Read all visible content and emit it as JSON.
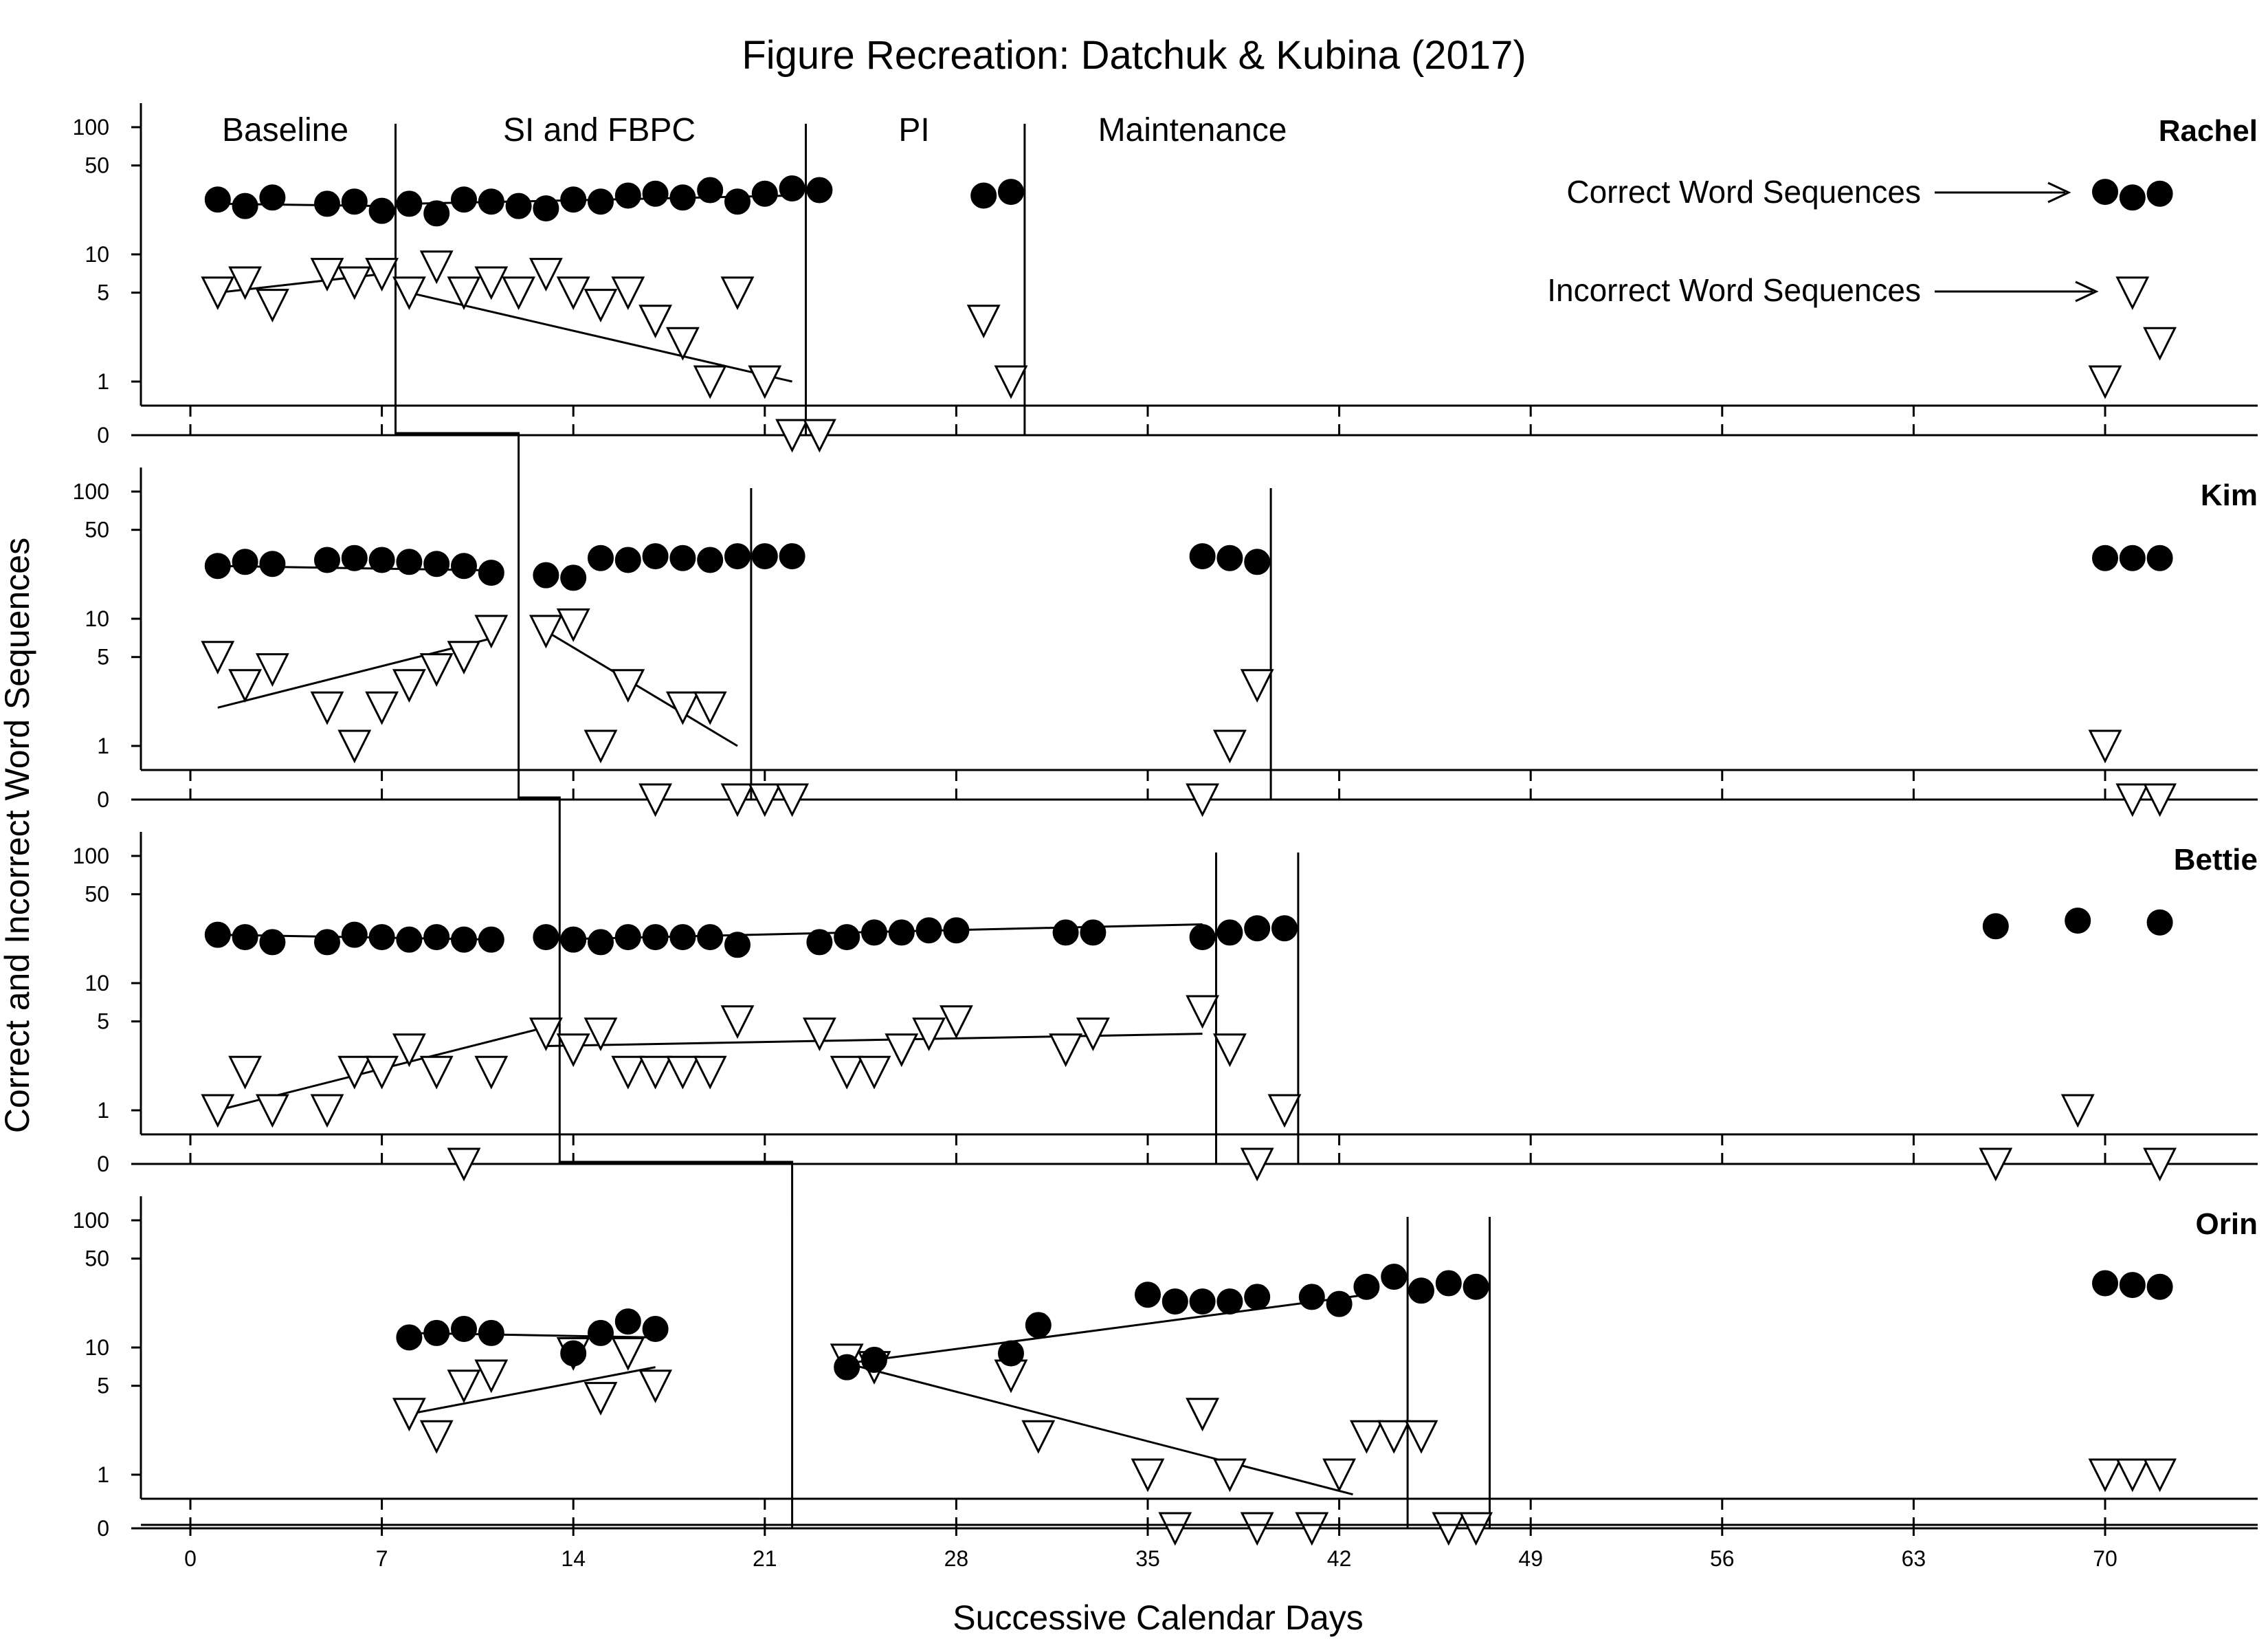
{
  "chart_data": {
    "type": "scatter",
    "title": "Figure Recreation: Datchuk & Kubina (2017)",
    "xlabel": "Successive Calendar Days",
    "ylabel": "Correct and Incorrect Word Sequences",
    "x_ticks": [
      0,
      7,
      14,
      21,
      28,
      35,
      42,
      49,
      56,
      63,
      70
    ],
    "xlim": [
      -1.5,
      75
    ],
    "y_scale": "log",
    "y_ticks": [
      {
        "value": 0,
        "label": "0"
      },
      {
        "value": 1,
        "label": "1"
      },
      {
        "value": 5,
        "label": "5"
      },
      {
        "value": 10,
        "label": "10"
      },
      {
        "value": 50,
        "label": "50"
      },
      {
        "value": 100,
        "label": "100"
      }
    ],
    "phases": [
      "Baseline",
      "SI and FBPC",
      "PI",
      "Maintenance"
    ],
    "legend": {
      "correct": "Correct Word Sequences",
      "incorrect": "Incorrect Word Sequences"
    },
    "colors": {
      "correct": "#000000",
      "incorrect": "#ffffff",
      "line": "#000000"
    },
    "panels": [
      {
        "name": "Rachel",
        "correct": [
          [
            1,
            27
          ],
          [
            2,
            24
          ],
          [
            3,
            28
          ],
          [
            5,
            25
          ],
          [
            6,
            26
          ],
          [
            7,
            22
          ],
          [
            8,
            25
          ],
          [
            9,
            21
          ],
          [
            10,
            27
          ],
          [
            11,
            26
          ],
          [
            12,
            24
          ],
          [
            13,
            23
          ],
          [
            14,
            27
          ],
          [
            15,
            26
          ],
          [
            16,
            29
          ],
          [
            17,
            30
          ],
          [
            18,
            28
          ],
          [
            19,
            32
          ],
          [
            20,
            26
          ],
          [
            21,
            30
          ],
          [
            22,
            33
          ],
          [
            23,
            32
          ],
          [
            29,
            29
          ],
          [
            30,
            31
          ],
          [
            70,
            31
          ],
          [
            71,
            28
          ],
          [
            72,
            30
          ]
        ],
        "incorrect": [
          [
            1,
            5
          ],
          [
            2,
            6
          ],
          [
            3,
            4
          ],
          [
            5,
            7
          ],
          [
            6,
            6
          ],
          [
            7,
            7
          ],
          [
            8,
            5
          ],
          [
            9,
            8
          ],
          [
            10,
            5
          ],
          [
            11,
            6
          ],
          [
            12,
            5
          ],
          [
            13,
            7
          ],
          [
            14,
            5
          ],
          [
            15,
            4
          ],
          [
            16,
            5
          ],
          [
            17,
            3
          ],
          [
            18,
            2
          ],
          [
            19,
            1
          ],
          [
            20,
            5
          ],
          [
            21,
            1
          ],
          [
            22,
            0
          ],
          [
            23,
            0
          ],
          [
            29,
            3
          ],
          [
            30,
            1
          ],
          [
            70,
            1
          ],
          [
            71,
            5
          ],
          [
            72,
            2
          ]
        ],
        "trends": [
          [
            [
              1,
              25
            ],
            [
              7,
              24
            ]
          ],
          [
            [
              8,
              25
            ],
            [
              22,
              29
            ]
          ],
          [
            [
              1,
              5
            ],
            [
              7,
              7
            ]
          ],
          [
            [
              8,
              5
            ],
            [
              22,
              1
            ]
          ]
        ],
        "phase_lines": [
          7.5,
          22.5,
          30.5
        ]
      },
      {
        "name": "Kim",
        "correct": [
          [
            1,
            26
          ],
          [
            2,
            28
          ],
          [
            3,
            27
          ],
          [
            5,
            29
          ],
          [
            6,
            30
          ],
          [
            7,
            29
          ],
          [
            8,
            28
          ],
          [
            9,
            27
          ],
          [
            10,
            26
          ],
          [
            11,
            23
          ],
          [
            13,
            22
          ],
          [
            14,
            21
          ],
          [
            15,
            30
          ],
          [
            16,
            29
          ],
          [
            17,
            31
          ],
          [
            18,
            30
          ],
          [
            19,
            29
          ],
          [
            20,
            31
          ],
          [
            21,
            31
          ],
          [
            22,
            31
          ],
          [
            37,
            31
          ],
          [
            38,
            30
          ],
          [
            39,
            28
          ],
          [
            70,
            30
          ],
          [
            71,
            30
          ],
          [
            72,
            30
          ]
        ],
        "incorrect": [
          [
            1,
            5
          ],
          [
            2,
            3
          ],
          [
            3,
            4
          ],
          [
            5,
            2
          ],
          [
            6,
            1
          ],
          [
            7,
            2
          ],
          [
            8,
            3
          ],
          [
            9,
            4
          ],
          [
            10,
            5
          ],
          [
            11,
            8
          ],
          [
            13,
            8
          ],
          [
            14,
            9
          ],
          [
            15,
            1
          ],
          [
            16,
            3
          ],
          [
            17,
            0
          ],
          [
            18,
            2
          ],
          [
            19,
            2
          ],
          [
            20,
            0
          ],
          [
            21,
            0
          ],
          [
            22,
            0
          ],
          [
            37,
            0
          ],
          [
            38,
            1
          ],
          [
            39,
            3
          ],
          [
            70,
            1
          ],
          [
            71,
            0
          ],
          [
            72,
            0
          ]
        ],
        "trends": [
          [
            [
              1,
              26
            ],
            [
              11,
              24
            ]
          ],
          [
            [
              1,
              2
            ],
            [
              11,
              7
            ]
          ],
          [
            [
              13,
              8
            ],
            [
              20,
              1
            ]
          ]
        ],
        "phase_lines": [
          12,
          20.5,
          39.5
        ]
      },
      {
        "name": "Bettie",
        "correct": [
          [
            1,
            24
          ],
          [
            2,
            23
          ],
          [
            3,
            21
          ],
          [
            5,
            21
          ],
          [
            6,
            24
          ],
          [
            7,
            23
          ],
          [
            8,
            22
          ],
          [
            9,
            23
          ],
          [
            10,
            22
          ],
          [
            11,
            22
          ],
          [
            13,
            23
          ],
          [
            14,
            22
          ],
          [
            15,
            21
          ],
          [
            16,
            23
          ],
          [
            17,
            23
          ],
          [
            18,
            23
          ],
          [
            19,
            23
          ],
          [
            20,
            20
          ],
          [
            23,
            21
          ],
          [
            24,
            23
          ],
          [
            25,
            25
          ],
          [
            26,
            25
          ],
          [
            27,
            26
          ],
          [
            28,
            26
          ],
          [
            32,
            25
          ],
          [
            33,
            25
          ],
          [
            37,
            23
          ],
          [
            38,
            25
          ],
          [
            39,
            27
          ],
          [
            40,
            27
          ],
          [
            66,
            28
          ],
          [
            69,
            31
          ],
          [
            72,
            30
          ]
        ],
        "incorrect": [
          [
            1,
            1
          ],
          [
            2,
            2
          ],
          [
            3,
            1
          ],
          [
            5,
            1
          ],
          [
            6,
            2
          ],
          [
            7,
            2
          ],
          [
            8,
            3
          ],
          [
            9,
            2
          ],
          [
            10,
            0
          ],
          [
            11,
            2
          ],
          [
            13,
            4
          ],
          [
            14,
            3
          ],
          [
            15,
            4
          ],
          [
            16,
            2
          ],
          [
            17,
            2
          ],
          [
            18,
            2
          ],
          [
            19,
            2
          ],
          [
            20,
            5
          ],
          [
            23,
            4
          ],
          [
            24,
            2
          ],
          [
            25,
            2
          ],
          [
            26,
            3
          ],
          [
            27,
            4
          ],
          [
            28,
            5
          ],
          [
            32,
            3
          ],
          [
            33,
            4
          ],
          [
            37,
            6
          ],
          [
            38,
            3
          ],
          [
            39,
            0
          ],
          [
            40,
            1
          ],
          [
            66,
            0
          ],
          [
            69,
            1
          ],
          [
            72,
            0
          ]
        ],
        "trends": [
          [
            [
              1,
              24
            ],
            [
              11,
              22
            ]
          ],
          [
            [
              13,
              22
            ],
            [
              37,
              29
            ]
          ],
          [
            [
              1,
              1
            ],
            [
              13,
              4.5
            ]
          ],
          [
            [
              13,
              3.2
            ],
            [
              37,
              4
            ]
          ]
        ],
        "phase_lines": [
          13.5,
          37.5,
          40.5
        ]
      },
      {
        "name": "Orin",
        "correct": [
          [
            8,
            12
          ],
          [
            9,
            13
          ],
          [
            10,
            14
          ],
          [
            11,
            13
          ],
          [
            14,
            9
          ],
          [
            15,
            13
          ],
          [
            16,
            16
          ],
          [
            17,
            14
          ],
          [
            24,
            7
          ],
          [
            25,
            8
          ],
          [
            30,
            9
          ],
          [
            31,
            15
          ],
          [
            35,
            26
          ],
          [
            36,
            23
          ],
          [
            37,
            23
          ],
          [
            38,
            23
          ],
          [
            39,
            25
          ],
          [
            41,
            25
          ],
          [
            42,
            22
          ],
          [
            43,
            30
          ],
          [
            44,
            36
          ],
          [
            45,
            28
          ],
          [
            46,
            32
          ],
          [
            47,
            30
          ],
          [
            70,
            32
          ],
          [
            71,
            31
          ],
          [
            72,
            30
          ]
        ],
        "incorrect": [
          [
            8,
            3
          ],
          [
            9,
            2
          ],
          [
            10,
            5
          ],
          [
            11,
            6
          ],
          [
            14,
            9
          ],
          [
            15,
            4
          ],
          [
            16,
            9
          ],
          [
            17,
            5
          ],
          [
            24,
            8
          ],
          [
            25,
            7
          ],
          [
            30,
            6
          ],
          [
            31,
            2
          ],
          [
            35,
            1
          ],
          [
            36,
            0
          ],
          [
            37,
            3
          ],
          [
            38,
            1
          ],
          [
            39,
            0
          ],
          [
            41,
            0
          ],
          [
            42,
            1
          ],
          [
            43,
            2
          ],
          [
            44,
            2
          ],
          [
            45,
            2
          ],
          [
            46,
            0
          ],
          [
            47,
            0
          ],
          [
            70,
            1
          ],
          [
            71,
            1
          ],
          [
            72,
            1
          ]
        ],
        "trends": [
          [
            [
              8,
              13
            ],
            [
              17,
              12
            ]
          ],
          [
            [
              24,
              7.5
            ],
            [
              43,
              26
            ]
          ],
          [
            [
              8,
              3
            ],
            [
              17,
              7
            ]
          ],
          [
            [
              24,
              7.5
            ],
            [
              42.5,
              0.7
            ]
          ]
        ],
        "phase_lines": [
          22,
          44.5,
          47.5
        ]
      }
    ],
    "cross_panel_steps": [
      [
        7.5,
        12
      ],
      [
        12,
        13.5
      ],
      [
        13.5,
        22
      ]
    ]
  }
}
